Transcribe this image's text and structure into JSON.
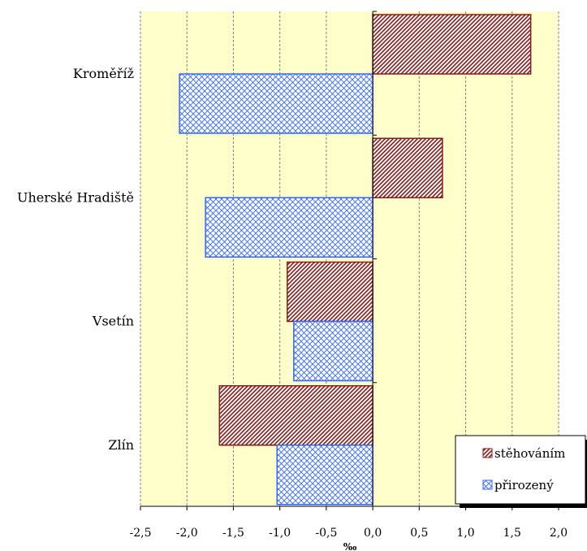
{
  "chart_data": {
    "type": "bar",
    "orientation": "horizontal",
    "categories": [
      "Kroměříž",
      "Uherské Hradiště",
      "Vsetín",
      "Zlín"
    ],
    "series": [
      {
        "name": "stěhováním",
        "values": [
          1.7,
          0.75,
          -0.92,
          -1.65
        ]
      },
      {
        "name": "přirozený",
        "values": [
          -2.08,
          -1.8,
          -0.85,
          -1.03
        ]
      }
    ],
    "xlabel": "‰",
    "ylabel": "",
    "xlim": [
      -2.5,
      2.0
    ],
    "x_ticks": [
      "-2,5",
      "-2,0",
      "-1,5",
      "-1,0",
      "-0,5",
      "0,0",
      "0,5",
      "1,0",
      "1,5",
      "2,0"
    ],
    "grid": "vertical dashed",
    "legend_position": "bottom-right",
    "plot_background": "#FFFFCC",
    "colors": {
      "stěhováním": "#8B1A1A",
      "přirozený": "#3366FF"
    }
  }
}
